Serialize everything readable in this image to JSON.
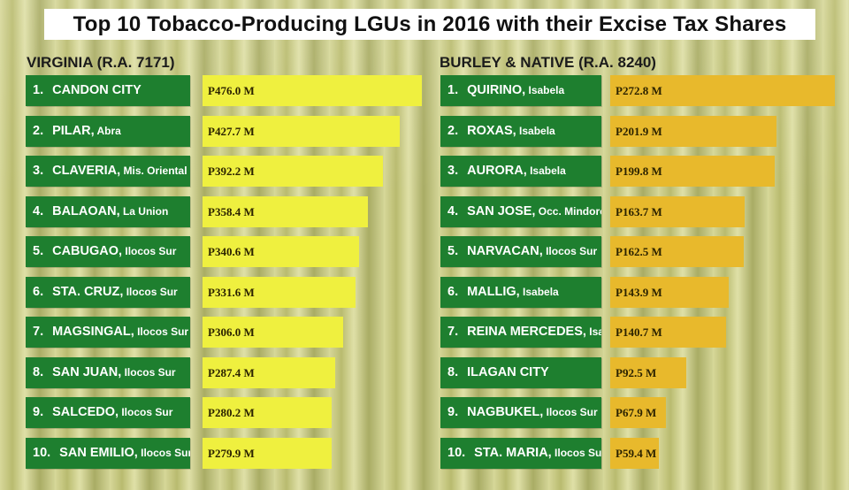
{
  "title": "Top 10 Tobacco-Producing LGUs in 2016 with their Excise Tax Shares",
  "colors": {
    "label_bg": "#1e7f2f",
    "virginia_bar": "#eff03f",
    "burley_bar": "#e8b92c",
    "title_bg": "#ffffff"
  },
  "chart_data": [
    {
      "type": "bar",
      "orientation": "horizontal",
      "title": "VIRGINIA (R.A. 7171)",
      "unit": "M",
      "currency": "P",
      "categories": [
        "CANDON CITY",
        "PILAR, Abra",
        "CLAVERIA, Mis. Oriental",
        "BALAOAN, La Union",
        "CABUGAO, Ilocos Sur",
        "STA. CRUZ, Ilocos Sur",
        "MAGSINGAL, Ilocos Sur",
        "SAN JUAN, Ilocos Sur",
        "SALCEDO, Ilocos Sur",
        "SAN EMILIO, Ilocos Sur"
      ],
      "values": [
        476.0,
        427.7,
        392.2,
        358.4,
        340.6,
        331.6,
        306.0,
        287.4,
        280.2,
        279.9
      ],
      "rows": [
        {
          "rank": "1.",
          "name": "CANDON CITY",
          "province": "",
          "value_label": "P476.0 M"
        },
        {
          "rank": "2.",
          "name": "PILAR,",
          "province": "Abra",
          "value_label": "P427.7 M"
        },
        {
          "rank": "3.",
          "name": "CLAVERIA,",
          "province": "Mis. Oriental",
          "value_label": "P392.2 M"
        },
        {
          "rank": "4.",
          "name": "BALAOAN,",
          "province": "La Union",
          "value_label": "P358.4 M"
        },
        {
          "rank": "5.",
          "name": "CABUGAO,",
          "province": "Ilocos Sur",
          "value_label": "P340.6 M"
        },
        {
          "rank": "6.",
          "name": "STA. CRUZ,",
          "province": "Ilocos Sur",
          "value_label": "P331.6 M"
        },
        {
          "rank": "7.",
          "name": "MAGSINGAL,",
          "province": "Ilocos Sur",
          "value_label": "P306.0 M"
        },
        {
          "rank": "8.",
          "name": "SAN JUAN,",
          "province": "Ilocos Sur",
          "value_label": "P287.4 M"
        },
        {
          "rank": "9.",
          "name": "SALCEDO,",
          "province": "Ilocos Sur",
          "value_label": "P280.2 M"
        },
        {
          "rank": "10.",
          "name": "SAN EMILIO,",
          "province": "Ilocos Sur",
          "value_label": "P279.9 M"
        }
      ]
    },
    {
      "type": "bar",
      "orientation": "horizontal",
      "title": "BURLEY & NATIVE (R.A. 8240)",
      "unit": "M",
      "currency": "P",
      "categories": [
        "QUIRINO, Isabela",
        "ROXAS, Isabela",
        "AURORA, Isabela",
        "SAN JOSE, Occ. Mindoro",
        "NARVACAN, Ilocos Sur",
        "MALLIG, Isabela",
        "REINA MERCEDES, Isabela",
        "ILAGAN CITY",
        "NAGBUKEL, Ilocos Sur",
        "STA. MARIA, Ilocos Sur"
      ],
      "values": [
        272.8,
        201.9,
        199.8,
        163.7,
        162.5,
        143.9,
        140.7,
        92.5,
        67.9,
        59.4
      ],
      "rows": [
        {
          "rank": "1.",
          "name": "QUIRINO,",
          "province": "Isabela",
          "value_label": "P272.8 M"
        },
        {
          "rank": "2.",
          "name": "ROXAS,",
          "province": "Isabela",
          "value_label": "P201.9 M"
        },
        {
          "rank": "3.",
          "name": "AURORA,",
          "province": "Isabela",
          "value_label": "P199.8 M"
        },
        {
          "rank": "4.",
          "name": "SAN JOSE,",
          "province": "Occ. Mindoro",
          "value_label": "P163.7 M"
        },
        {
          "rank": "5.",
          "name": "NARVACAN,",
          "province": "Ilocos Sur",
          "value_label": "P162.5 M"
        },
        {
          "rank": "6.",
          "name": "MALLIG,",
          "province": "Isabela",
          "value_label": "P143.9 M"
        },
        {
          "rank": "7.",
          "name": "REINA MERCEDES,",
          "province": "Isabela",
          "value_label": "P140.7 M"
        },
        {
          "rank": "8.",
          "name": "ILAGAN CITY",
          "province": "",
          "value_label": "P92.5 M"
        },
        {
          "rank": "9.",
          "name": "NAGBUKEL,",
          "province": "Ilocos Sur",
          "value_label": "P67.9 M"
        },
        {
          "rank": "10.",
          "name": "STA. MARIA,",
          "province": "Ilocos Sur",
          "value_label": "P59.4 M"
        }
      ]
    }
  ]
}
